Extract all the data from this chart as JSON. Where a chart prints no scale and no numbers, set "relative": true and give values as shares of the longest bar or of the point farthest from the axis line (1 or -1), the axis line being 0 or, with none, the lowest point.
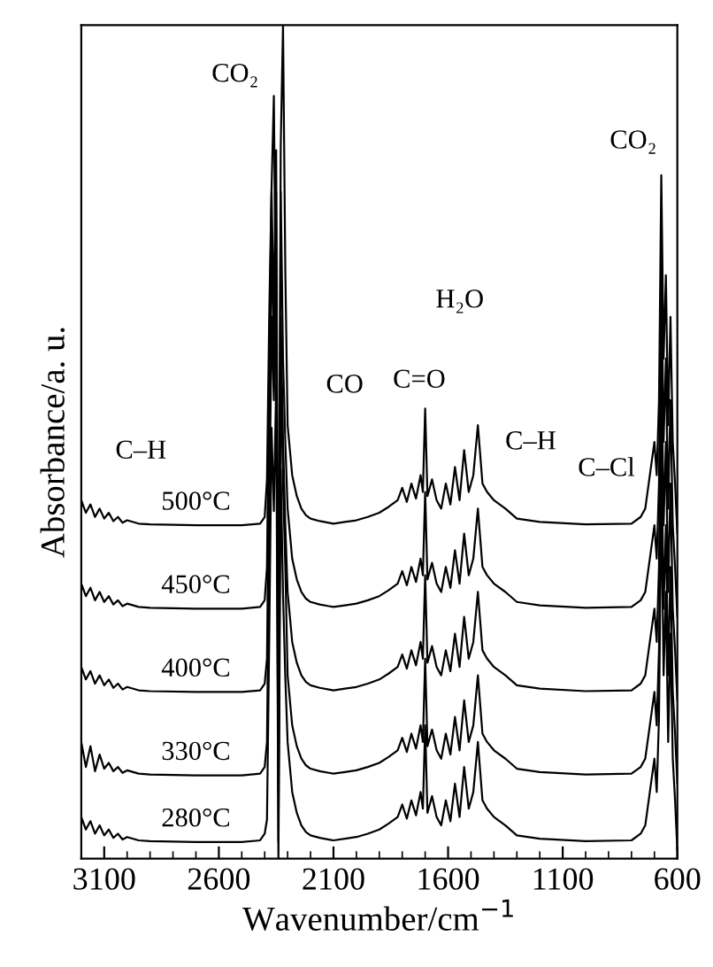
{
  "chart_data": {
    "type": "line",
    "relative": true,
    "xlabel": "Wavenumber/cm$^{−1}$",
    "ylabel": "Absorbance/a. u.",
    "xlim": [
      3200,
      600
    ],
    "xticks": [
      3100,
      2600,
      2100,
      1600,
      1100,
      600
    ],
    "x": [
      3200,
      3180,
      3160,
      3140,
      3120,
      3100,
      3080,
      3060,
      3040,
      3020,
      3000,
      2950,
      2900,
      2700,
      2500,
      2420,
      2400,
      2390,
      2380,
      2370,
      2360,
      2350,
      2340,
      2330,
      2320,
      2310,
      2300,
      2290,
      2280,
      2260,
      2240,
      2220,
      2200,
      2160,
      2120,
      2100,
      2050,
      2000,
      1950,
      1900,
      1860,
      1820,
      1800,
      1780,
      1760,
      1740,
      1720,
      1710,
      1700,
      1690,
      1670,
      1650,
      1630,
      1610,
      1590,
      1570,
      1550,
      1530,
      1510,
      1490,
      1470,
      1450,
      1430,
      1400,
      1350,
      1300,
      1200,
      1000,
      800,
      760,
      740,
      720,
      700,
      690,
      680,
      670,
      660,
      650,
      640,
      630,
      620,
      610,
      600
    ],
    "series": [
      {
        "name": "500°C",
        "color": "#000000",
        "values": [
          0.43,
          0.415,
          0.425,
          0.41,
          0.42,
          0.408,
          0.415,
          0.405,
          0.41,
          0.403,
          0.406,
          0.402,
          0.401,
          0.4,
          0.4,
          0.402,
          0.41,
          0.455,
          0.655,
          0.805,
          0.915,
          0.605,
          0.205,
          0.855,
          1.0,
          0.705,
          0.52,
          0.49,
          0.46,
          0.435,
          0.42,
          0.412,
          0.408,
          0.405,
          0.403,
          0.402,
          0.404,
          0.406,
          0.41,
          0.415,
          0.422,
          0.43,
          0.445,
          0.428,
          0.45,
          0.432,
          0.46,
          0.44,
          0.54,
          0.435,
          0.455,
          0.43,
          0.42,
          0.45,
          0.425,
          0.47,
          0.43,
          0.49,
          0.44,
          0.46,
          0.52,
          0.45,
          0.44,
          0.43,
          0.42,
          0.408,
          0.404,
          0.401,
          0.402,
          0.41,
          0.42,
          0.46,
          0.5,
          0.46,
          0.55,
          0.82,
          0.6,
          0.7,
          0.52,
          0.65,
          0.5,
          0.45,
          0.39
        ]
      },
      {
        "name": "450°C",
        "color": "#000000",
        "values": [
          0.33,
          0.315,
          0.325,
          0.31,
          0.32,
          0.308,
          0.315,
          0.305,
          0.31,
          0.303,
          0.306,
          0.302,
          0.301,
          0.3,
          0.3,
          0.302,
          0.31,
          0.35,
          0.6,
          0.8,
          0.65,
          0.85,
          0.15,
          0.8,
          0.6,
          0.5,
          0.42,
          0.39,
          0.36,
          0.335,
          0.32,
          0.312,
          0.308,
          0.305,
          0.303,
          0.302,
          0.304,
          0.306,
          0.31,
          0.315,
          0.322,
          0.33,
          0.345,
          0.328,
          0.35,
          0.332,
          0.36,
          0.34,
          0.44,
          0.335,
          0.355,
          0.33,
          0.32,
          0.35,
          0.325,
          0.37,
          0.33,
          0.39,
          0.34,
          0.36,
          0.42,
          0.35,
          0.34,
          0.33,
          0.32,
          0.308,
          0.304,
          0.301,
          0.302,
          0.31,
          0.32,
          0.36,
          0.4,
          0.36,
          0.45,
          0.72,
          0.5,
          0.6,
          0.42,
          0.55,
          0.4,
          0.35,
          0.29
        ]
      },
      {
        "name": "400°C",
        "color": "#000000",
        "values": [
          0.23,
          0.215,
          0.225,
          0.21,
          0.22,
          0.208,
          0.215,
          0.205,
          0.21,
          0.203,
          0.206,
          0.202,
          0.201,
          0.2,
          0.2,
          0.202,
          0.21,
          0.24,
          0.5,
          0.75,
          0.6,
          0.8,
          0.08,
          0.65,
          0.5,
          0.4,
          0.32,
          0.29,
          0.26,
          0.235,
          0.22,
          0.212,
          0.208,
          0.205,
          0.203,
          0.202,
          0.204,
          0.206,
          0.21,
          0.215,
          0.222,
          0.23,
          0.245,
          0.228,
          0.25,
          0.232,
          0.26,
          0.24,
          0.34,
          0.235,
          0.255,
          0.23,
          0.22,
          0.25,
          0.225,
          0.27,
          0.23,
          0.29,
          0.24,
          0.26,
          0.32,
          0.25,
          0.24,
          0.23,
          0.22,
          0.208,
          0.204,
          0.201,
          0.202,
          0.21,
          0.22,
          0.26,
          0.3,
          0.26,
          0.35,
          0.62,
          0.4,
          0.5,
          0.32,
          0.45,
          0.3,
          0.25,
          0.19
        ]
      },
      {
        "name": "330°C",
        "color": "#000000",
        "values": [
          0.14,
          0.11,
          0.135,
          0.105,
          0.125,
          0.108,
          0.115,
          0.105,
          0.11,
          0.103,
          0.106,
          0.102,
          0.101,
          0.1,
          0.1,
          0.102,
          0.11,
          0.14,
          0.4,
          0.65,
          0.55,
          0.7,
          0.02,
          0.6,
          0.45,
          0.35,
          0.22,
          0.19,
          0.16,
          0.135,
          0.12,
          0.112,
          0.108,
          0.105,
          0.103,
          0.102,
          0.104,
          0.106,
          0.11,
          0.115,
          0.122,
          0.13,
          0.145,
          0.128,
          0.15,
          0.132,
          0.16,
          0.14,
          0.24,
          0.135,
          0.155,
          0.13,
          0.12,
          0.15,
          0.125,
          0.17,
          0.13,
          0.19,
          0.14,
          0.16,
          0.22,
          0.15,
          0.14,
          0.13,
          0.12,
          0.108,
          0.104,
          0.101,
          0.102,
          0.11,
          0.12,
          0.16,
          0.2,
          0.16,
          0.25,
          0.52,
          0.3,
          0.4,
          0.22,
          0.35,
          0.2,
          0.15,
          0.09
        ]
      },
      {
        "name": "280°C",
        "color": "#000000",
        "values": [
          0.05,
          0.035,
          0.045,
          0.03,
          0.04,
          0.028,
          0.035,
          0.025,
          0.03,
          0.023,
          0.026,
          0.022,
          0.021,
          0.02,
          0.02,
          0.022,
          0.03,
          0.047,
          0.267,
          0.517,
          0.417,
          0.567,
          0,
          0.467,
          0.317,
          0.217,
          0.14,
          0.11,
          0.08,
          0.055,
          0.04,
          0.032,
          0.028,
          0.025,
          0.023,
          0.022,
          0.024,
          0.026,
          0.03,
          0.035,
          0.042,
          0.05,
          0.065,
          0.048,
          0.07,
          0.052,
          0.08,
          0.06,
          0.16,
          0.055,
          0.075,
          0.05,
          0.04,
          0.07,
          0.045,
          0.09,
          0.05,
          0.11,
          0.06,
          0.08,
          0.14,
          0.07,
          0.06,
          0.05,
          0.04,
          0.028,
          0.024,
          0.021,
          0.022,
          0.03,
          0.04,
          0.08,
          0.12,
          0.08,
          0.17,
          0.44,
          0.22,
          0.32,
          0.14,
          0.27,
          0.12,
          0.07,
          0.01
        ]
      }
    ],
    "annotations": [
      "C–H",
      "CO₂",
      "CO",
      "C=O",
      "H₂O",
      "C–H",
      "C–Cl",
      "CO₂"
    ]
  }
}
